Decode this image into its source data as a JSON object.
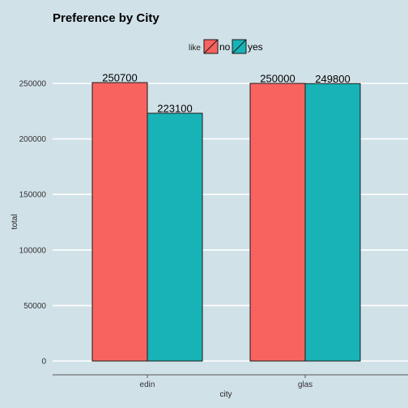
{
  "chart_data": {
    "type": "bar",
    "title": "Preference by City",
    "xlabel": "city",
    "ylabel": "total",
    "categories": [
      "edin",
      "glas"
    ],
    "series": [
      {
        "name": "no",
        "values": [
          250700,
          250000
        ],
        "color": "#f8635f"
      },
      {
        "name": "yes",
        "values": [
          223100,
          249800
        ],
        "color": "#18b3b7"
      }
    ],
    "data_labels": [
      [
        "250700",
        "250000"
      ],
      [
        "223100",
        "249800"
      ]
    ],
    "ylim": [
      0,
      262500
    ],
    "y_ticks": [
      0,
      50000,
      100000,
      150000,
      200000,
      250000
    ],
    "y_tick_labels": [
      "0",
      "50000",
      "100000",
      "150000",
      "200000",
      "250000"
    ],
    "legend": {
      "title": "like",
      "position": "top",
      "entries": [
        "no",
        "yes"
      ]
    },
    "grid": "horizontal major lines only"
  }
}
